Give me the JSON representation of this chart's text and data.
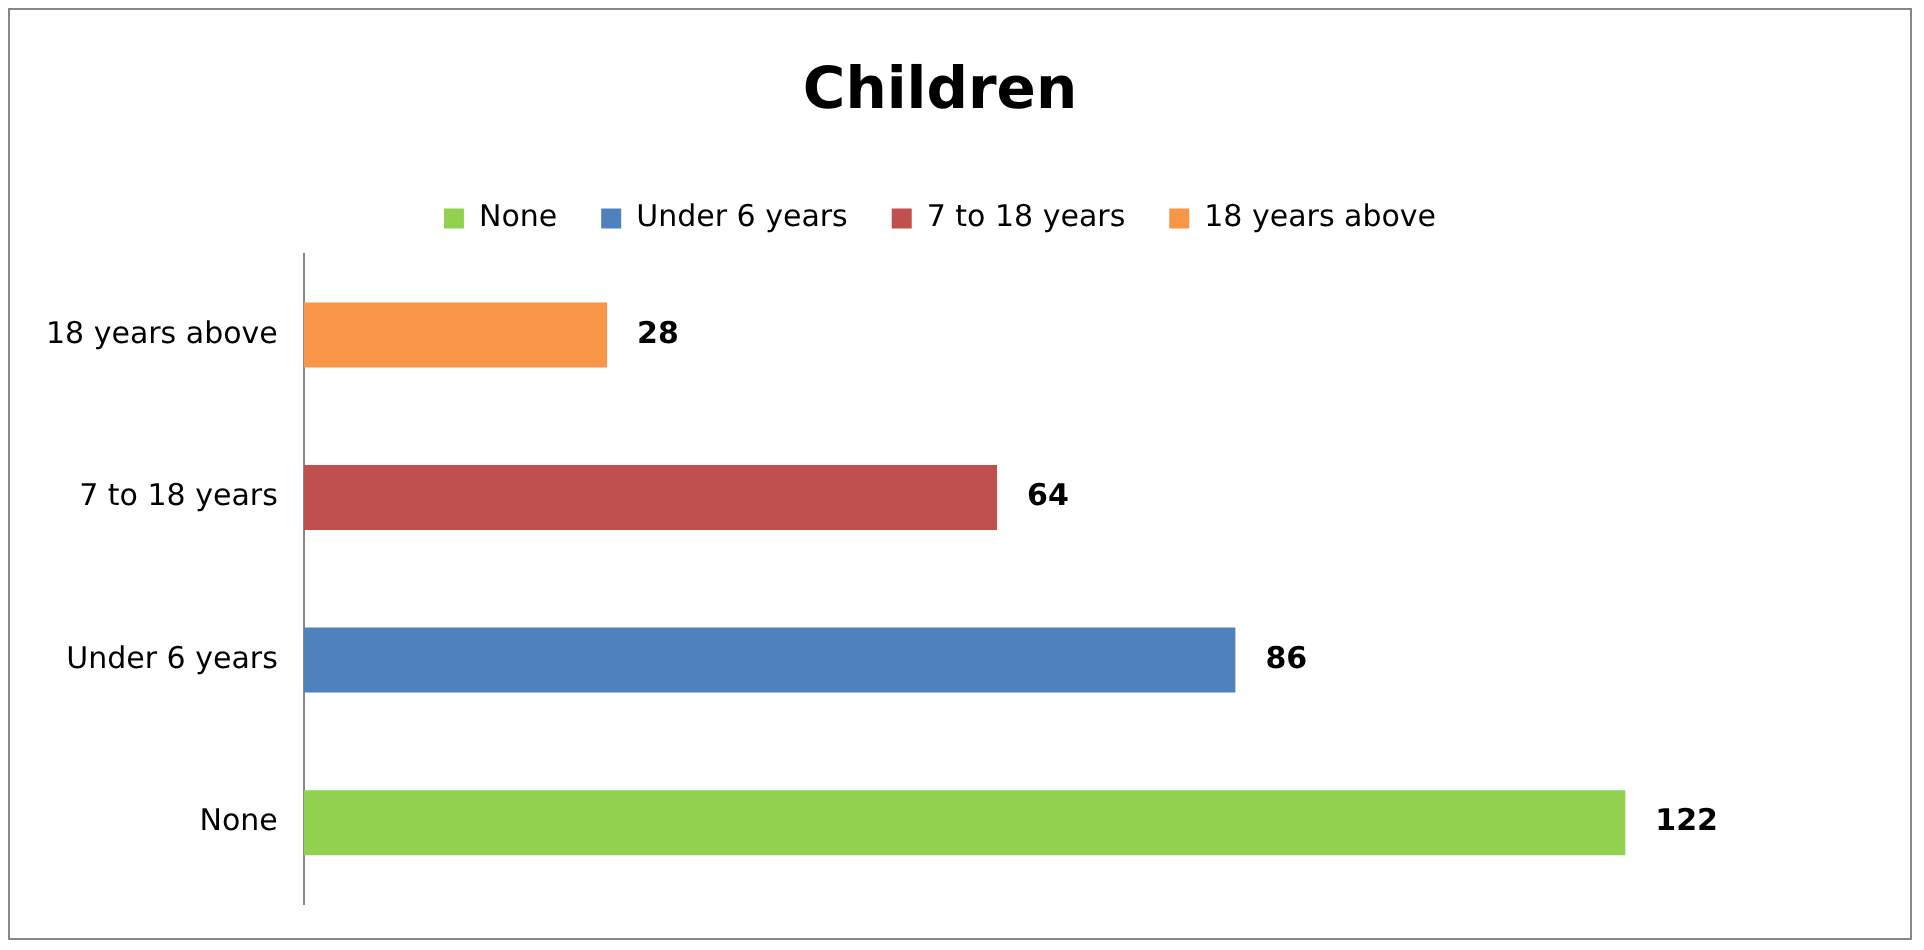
{
  "chart_data": {
    "type": "bar",
    "orientation": "horizontal",
    "title": "Children",
    "categories": [
      "18 years above",
      "7 to 18 years",
      "Under 6 years",
      "None"
    ],
    "series": [
      {
        "name": "None",
        "color": "#92d050",
        "values": [
          null,
          null,
          null,
          122
        ]
      },
      {
        "name": "Under 6 years",
        "color": "#4f81bd",
        "values": [
          null,
          null,
          86,
          null
        ]
      },
      {
        "name": "7 to 18 years",
        "color": "#c0504d",
        "values": [
          null,
          64,
          null,
          null
        ]
      },
      {
        "name": "18 years above",
        "color": "#f79646",
        "values": [
          28,
          null,
          null,
          null
        ]
      }
    ],
    "data_labels": true,
    "legend": "top",
    "grid": false
  }
}
